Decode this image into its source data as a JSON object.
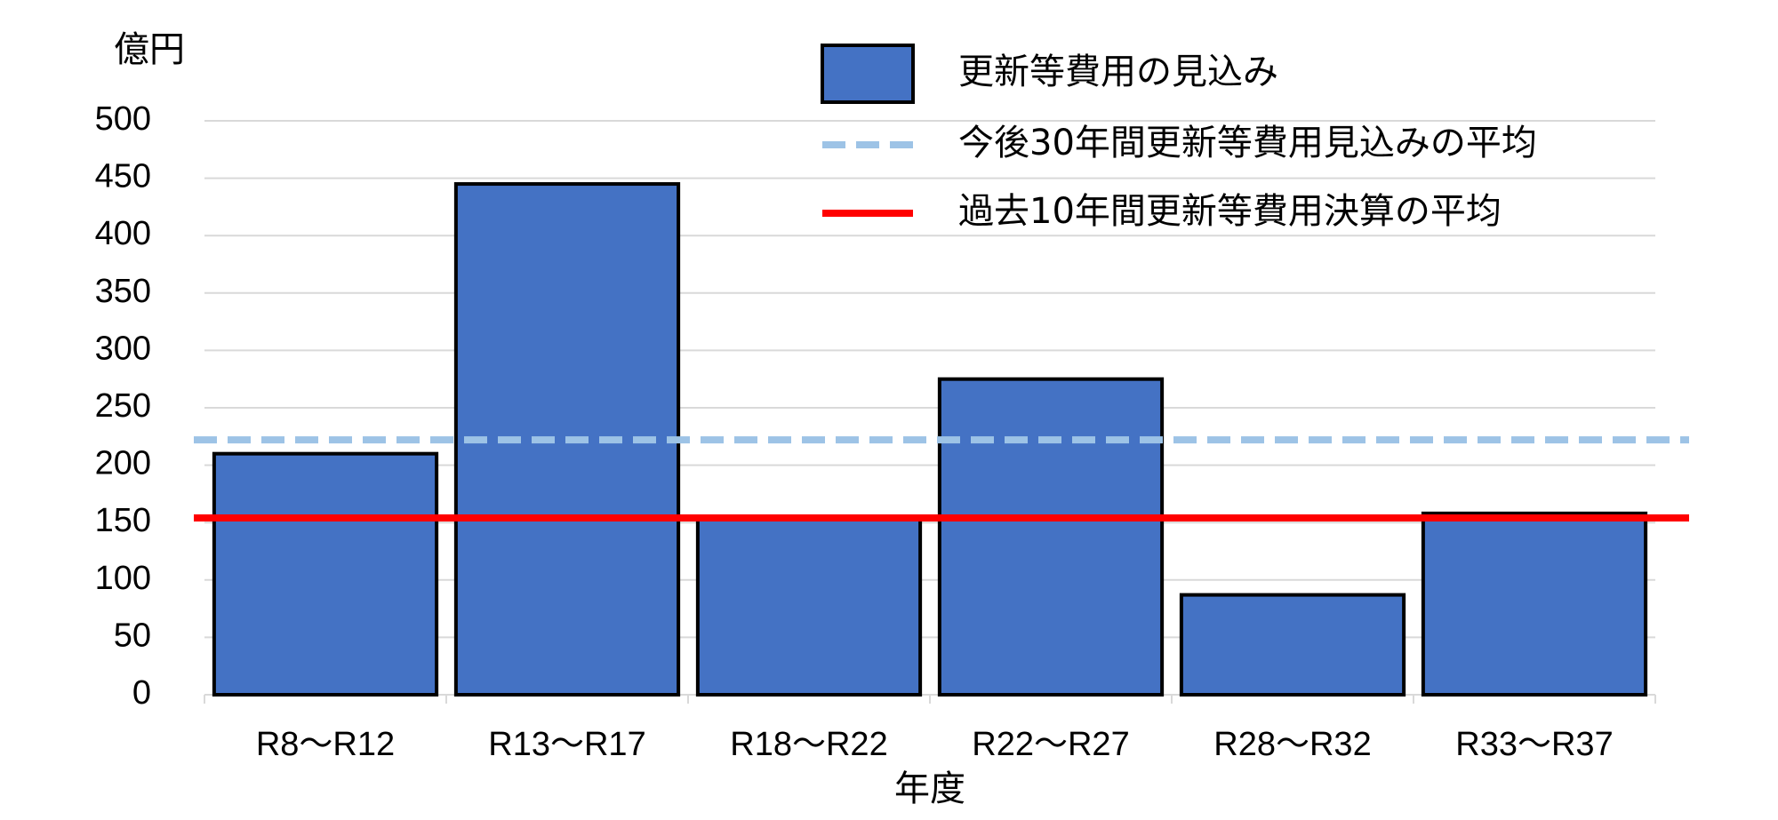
{
  "chart_data": {
    "type": "bar",
    "y_unit_label": "億円",
    "xlabel": "年度",
    "categories": [
      "R8～R12",
      "R13～R17",
      "R18～R22",
      "R22～R27",
      "R28～R32",
      "R33～R37"
    ],
    "series": [
      {
        "name": "更新等費用の見込み",
        "color": "#4472c4",
        "values": [
          210,
          445,
          155,
          275,
          87,
          158
        ]
      }
    ],
    "reference_lines": [
      {
        "name": "今後30年間更新等費用見込みの平均",
        "color": "#9dc3e6",
        "style": "dashed",
        "value": 222
      },
      {
        "name": "過去10年間更新等費用決算の平均",
        "color": "#ff0000",
        "style": "solid",
        "value": 154
      }
    ],
    "ylim": [
      0,
      500
    ],
    "yticks": [
      0,
      50,
      100,
      150,
      200,
      250,
      300,
      350,
      400,
      450,
      500
    ],
    "grid": true
  }
}
